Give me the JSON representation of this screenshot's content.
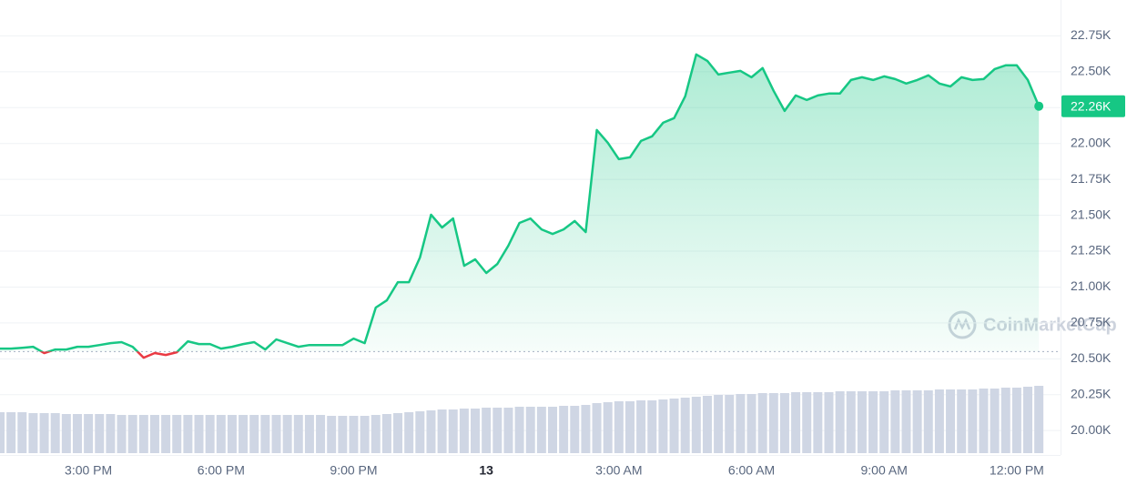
{
  "chart_data": {
    "type": "line",
    "categories": [
      null,
      null,
      null,
      null,
      null,
      null,
      null,
      null,
      "3:00 PM",
      null,
      null,
      null,
      null,
      null,
      null,
      null,
      null,
      null,
      null,
      null,
      "6:00 PM",
      null,
      null,
      null,
      null,
      null,
      null,
      null,
      null,
      null,
      null,
      null,
      "9:00 PM",
      null,
      null,
      null,
      null,
      null,
      null,
      null,
      null,
      null,
      null,
      null,
      "13",
      null,
      null,
      null,
      null,
      null,
      null,
      null,
      null,
      null,
      null,
      null,
      "3:00 AM",
      null,
      null,
      null,
      null,
      null,
      null,
      null,
      null,
      null,
      null,
      null,
      "6:00 AM",
      null,
      null,
      null,
      null,
      null,
      null,
      null,
      null,
      null,
      null,
      null,
      "9:00 AM",
      null,
      null,
      null,
      null,
      null,
      null,
      null,
      null,
      null,
      null,
      null,
      "12:00 PM",
      null,
      null
    ],
    "values": [
      20571,
      20571,
      20577,
      20584,
      20540,
      20565,
      20565,
      20584,
      20584,
      20596,
      20609,
      20616,
      20584,
      20508,
      20540,
      20527,
      20546,
      20622,
      20603,
      20603,
      20571,
      20584,
      20603,
      20616,
      20565,
      20635,
      20609,
      20584,
      20596,
      20596,
      20596,
      20596,
      20641,
      20609,
      20857,
      20907,
      21034,
      21034,
      21206,
      21504,
      21415,
      21478,
      21148,
      21193,
      21098,
      21161,
      21288,
      21447,
      21478,
      21402,
      21370,
      21402,
      21460,
      21383,
      22094,
      22005,
      21891,
      21904,
      22018,
      22050,
      22145,
      22177,
      22329,
      22621,
      22576,
      22481,
      22494,
      22506,
      22462,
      22526,
      22367,
      22227,
      22335,
      22303,
      22335,
      22348,
      22348,
      22443,
      22462,
      22443,
      22468,
      22449,
      22418,
      22443,
      22475,
      22418,
      22398,
      22462,
      22443,
      22449,
      22519,
      22545,
      22545,
      22443,
      22260
    ],
    "volume": [
      45,
      45,
      45,
      44,
      44,
      44,
      43,
      43,
      43,
      43,
      43,
      42,
      42,
      42,
      42,
      42,
      42,
      42,
      42,
      42,
      42,
      42,
      42,
      42,
      42,
      42,
      42,
      42,
      42,
      42,
      41,
      41,
      41,
      41,
      42,
      43,
      44,
      45,
      46,
      47,
      48,
      48,
      49,
      49,
      50,
      50,
      50,
      51,
      51,
      51,
      51,
      52,
      52,
      53,
      55,
      56,
      57,
      57,
      58,
      58,
      59,
      60,
      61,
      62,
      63,
      64,
      64,
      65,
      65,
      66,
      66,
      66,
      67,
      67,
      67,
      67,
      68,
      68,
      68,
      68,
      68,
      69,
      69,
      69,
      69,
      70,
      70,
      70,
      70,
      71,
      71,
      72,
      72,
      73,
      74
    ],
    "color": "#16c784",
    "down_color": "#ea3943",
    "volume_color": "#cfd6e4",
    "baseline": 20550,
    "last_label": "22.26K",
    "watermark": "CoinMarketCap",
    "grid": true,
    "ylim": [
      19830,
      23000
    ],
    "yticks": [
      {
        "value": 20000,
        "label": "20.00K"
      },
      {
        "value": 20250,
        "label": "20.25K"
      },
      {
        "value": 20500,
        "label": "20.50K"
      },
      {
        "value": 20750,
        "label": "20.75K"
      },
      {
        "value": 21000,
        "label": "21.00K"
      },
      {
        "value": 21250,
        "label": "21.25K"
      },
      {
        "value": 21500,
        "label": "21.50K"
      },
      {
        "value": 21750,
        "label": "21.75K"
      },
      {
        "value": 22000,
        "label": "22.00K"
      },
      {
        "value": 22250,
        "label": "22.25K"
      },
      {
        "value": 22500,
        "label": "22.50K"
      },
      {
        "value": 22750,
        "label": "22.75K"
      }
    ]
  }
}
